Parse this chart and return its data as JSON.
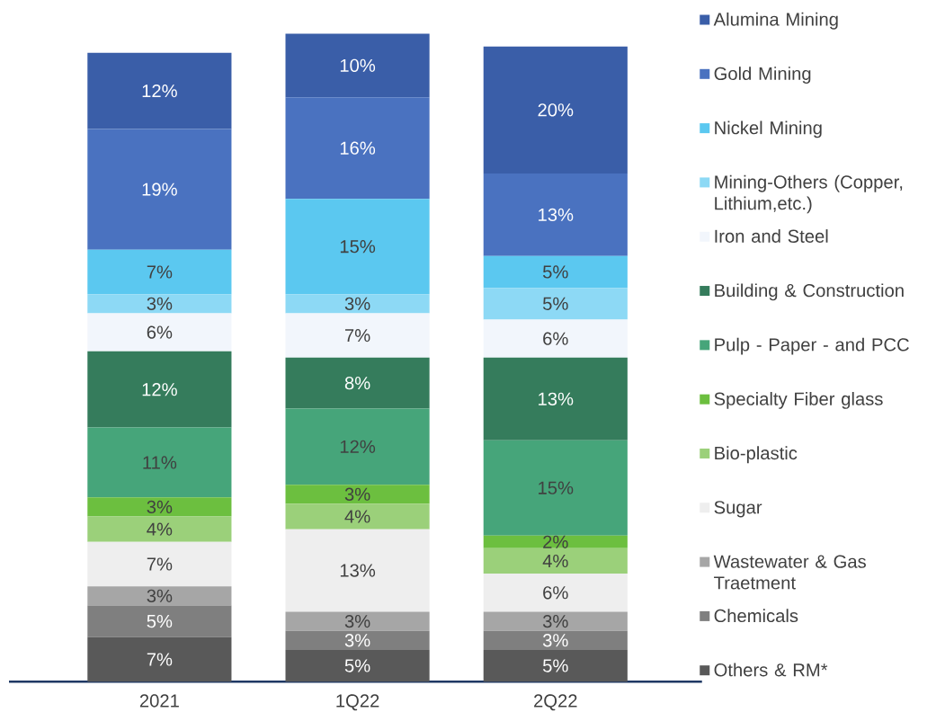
{
  "chart_data": {
    "type": "bar",
    "stacked": true,
    "legend": "right",
    "categories": [
      "2021",
      "1Q22",
      "2Q22"
    ],
    "series": [
      {
        "name": "Others & RM*",
        "color": "#595959",
        "values": [
          7,
          5,
          5
        ],
        "value_labels": [
          "7%",
          "5%",
          "5%"
        ]
      },
      {
        "name": "Chemicals",
        "color": "#7f7f7f",
        "values": [
          5,
          3,
          3
        ],
        "value_labels": [
          "5%",
          "3%",
          "3%"
        ]
      },
      {
        "name": "Wastewater & Gas Traetment",
        "color": "#a6a6a6",
        "values": [
          3,
          3,
          3
        ],
        "value_labels": [
          "3%",
          "3%",
          "3%"
        ]
      },
      {
        "name": "Sugar",
        "color": "#eeeeee",
        "values": [
          7,
          13,
          6
        ],
        "value_labels": [
          "7%",
          "13%",
          "6%"
        ]
      },
      {
        "name": "Bio-plastic",
        "color": "#9bd07a",
        "values": [
          4,
          4,
          4
        ],
        "value_labels": [
          "4%",
          "4%",
          "4%"
        ]
      },
      {
        "name": "Specialty Fiber glass",
        "color": "#6cbf3f",
        "values": [
          3,
          3,
          2
        ],
        "value_labels": [
          "3%",
          "3%",
          "2%"
        ]
      },
      {
        "name": "Pulp - Paper - and PCC",
        "color": "#46a57a",
        "values": [
          11,
          12,
          15
        ],
        "value_labels": [
          "11%",
          "12%",
          "15%"
        ]
      },
      {
        "name": "Building & Construction",
        "color": "#357c5c",
        "values": [
          12,
          8,
          13
        ],
        "value_labels": [
          "12%",
          "8%",
          "13%"
        ]
      },
      {
        "name": "Iron and Steel",
        "color": "#f2f6fc",
        "values": [
          6,
          7,
          6
        ],
        "value_labels": [
          "6%",
          "7%",
          "6%"
        ]
      },
      {
        "name": "Mining-Others (Copper, Lithium,etc.)",
        "color": "#8dd9f5",
        "values": [
          3,
          3,
          5
        ],
        "value_labels": [
          "3%",
          "3%",
          "5%"
        ]
      },
      {
        "name": "Nickel Mining",
        "color": "#5bc8f0",
        "values": [
          7,
          15,
          5
        ],
        "value_labels": [
          "7%",
          "15%",
          "5%"
        ]
      },
      {
        "name": "Gold Mining",
        "color": "#4a72c0",
        "values": [
          19,
          16,
          13
        ],
        "value_labels": [
          "19%",
          "16%",
          "13%"
        ]
      },
      {
        "name": "Alumina Mining",
        "color": "#3a5ea8",
        "values": [
          12,
          10,
          20
        ],
        "value_labels": [
          "12%",
          "10%",
          "20%"
        ]
      }
    ]
  }
}
